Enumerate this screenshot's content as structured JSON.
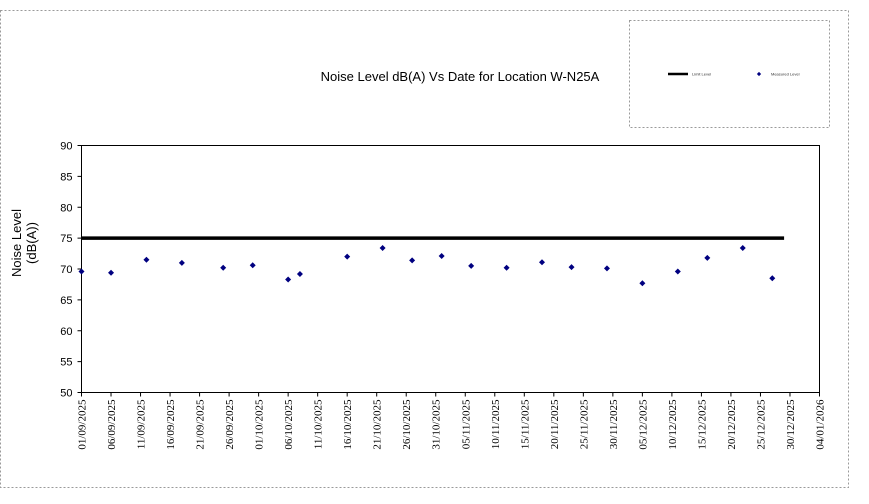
{
  "chart_data": {
    "type": "scatter",
    "title": "Noise Level dB(A) Vs Date for Location W-N25A",
    "xlabel": "",
    "ylabel": [
      "Noise Level",
      "(dB(A))"
    ],
    "x_ticks": [
      "01/09/2025",
      "06/09/2025",
      "11/09/2025",
      "16/09/2025",
      "21/09/2025",
      "26/09/2025",
      "01/10/2025",
      "06/10/2025",
      "11/10/2025",
      "16/10/2025",
      "21/10/2025",
      "26/10/2025",
      "31/10/2025",
      "05/11/2025",
      "10/11/2025",
      "15/11/2025",
      "20/11/2025",
      "25/11/2025",
      "30/11/2025",
      "05/12/2025",
      "10/12/2025",
      "15/12/2025",
      "20/12/2025",
      "25/12/2025",
      "30/12/2025",
      "04/01/2026"
    ],
    "y_ticks": [
      90,
      85,
      80,
      75,
      70,
      65,
      60,
      55,
      50
    ],
    "xlim": [
      "01/09/2025",
      "04/01/2026"
    ],
    "ylim": [
      50,
      90
    ],
    "grid": false,
    "legend_position": "top-right",
    "legend_entries": [
      "Limit Level",
      "Measured Level"
    ],
    "series": [
      {
        "name": "Limit Level",
        "kind": "line",
        "color": "#000000",
        "x": [
          "01/09/2025",
          "29/12/2025"
        ],
        "y": [
          75,
          75
        ]
      },
      {
        "name": "Measured Level",
        "kind": "scatter",
        "color": "#000080",
        "x": [
          "01/09/2025",
          "06/09/2025",
          "12/09/2025",
          "18/09/2025",
          "25/09/2025",
          "30/09/2025",
          "06/10/2025",
          "08/10/2025",
          "16/10/2025",
          "22/10/2025",
          "27/10/2025",
          "01/11/2025",
          "06/11/2025",
          "12/11/2025",
          "18/11/2025",
          "23/11/2025",
          "29/11/2025",
          "05/12/2025",
          "11/12/2025",
          "16/12/2025",
          "22/12/2025",
          "27/12/2025"
        ],
        "y": [
          69.6,
          69.4,
          71.5,
          71.0,
          70.2,
          70.6,
          68.3,
          69.2,
          72.0,
          73.4,
          71.4,
          72.1,
          70.5,
          70.2,
          71.1,
          70.3,
          70.1,
          67.7,
          69.6,
          71.8,
          73.4,
          68.5
        ]
      }
    ]
  }
}
